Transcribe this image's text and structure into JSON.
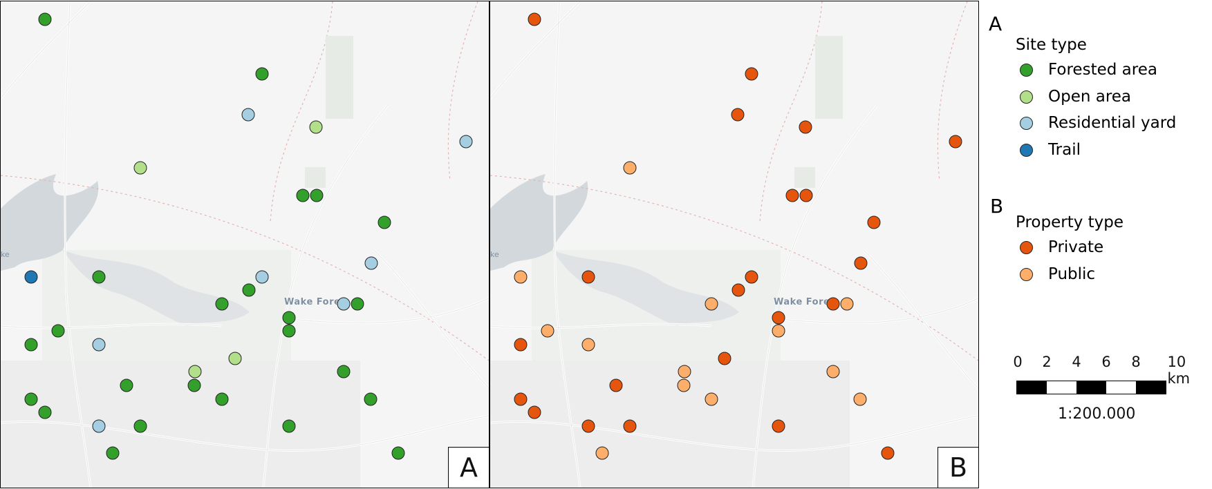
{
  "colors": {
    "forested": "#33a02c",
    "open": "#b2df8a",
    "residential": "#a6cee3",
    "trail": "#1f78b4",
    "private": "#e6550d",
    "public": "#fdae6b"
  },
  "map": {
    "place_label": "Wake Fore",
    "lake_label": "ke"
  },
  "panel_a": {
    "label": "A",
    "sites": [
      {
        "type": "forested"
      },
      {
        "type": "forested"
      },
      {
        "type": "residential"
      },
      {
        "type": "open"
      },
      {
        "type": "residential"
      },
      {
        "type": "open"
      },
      {
        "type": "forested"
      },
      {
        "type": "forested"
      },
      {
        "type": "forested"
      },
      {
        "type": "residential"
      },
      {
        "type": "trail"
      },
      {
        "type": "forested"
      },
      {
        "type": "residential"
      },
      {
        "type": "forested"
      },
      {
        "type": "forested"
      },
      {
        "type": "residential"
      },
      {
        "type": "forested"
      },
      {
        "type": "forested"
      },
      {
        "type": "forested"
      },
      {
        "type": "forested"
      },
      {
        "type": "forested"
      },
      {
        "type": "residential"
      },
      {
        "type": "open"
      },
      {
        "type": "open"
      },
      {
        "type": "forested"
      },
      {
        "type": "forested"
      },
      {
        "type": "forested"
      },
      {
        "type": "forested"
      },
      {
        "type": "forested"
      },
      {
        "type": "forested"
      },
      {
        "type": "forested"
      },
      {
        "type": "residential"
      },
      {
        "type": "forested"
      },
      {
        "type": "forested"
      },
      {
        "type": "forested"
      },
      {
        "type": "forested"
      }
    ]
  },
  "panel_b": {
    "label": "B",
    "sites": [
      {
        "type": "private"
      },
      {
        "type": "private"
      },
      {
        "type": "private"
      },
      {
        "type": "private"
      },
      {
        "type": "private"
      },
      {
        "type": "public"
      },
      {
        "type": "private"
      },
      {
        "type": "private"
      },
      {
        "type": "private"
      },
      {
        "type": "private"
      },
      {
        "type": "public"
      },
      {
        "type": "private"
      },
      {
        "type": "private"
      },
      {
        "type": "private"
      },
      {
        "type": "public"
      },
      {
        "type": "private"
      },
      {
        "type": "public"
      },
      {
        "type": "private"
      },
      {
        "type": "public"
      },
      {
        "type": "public"
      },
      {
        "type": "private"
      },
      {
        "type": "public"
      },
      {
        "type": "private"
      },
      {
        "type": "public"
      },
      {
        "type": "public"
      },
      {
        "type": "private"
      },
      {
        "type": "public"
      },
      {
        "type": "public"
      },
      {
        "type": "private"
      },
      {
        "type": "public"
      },
      {
        "type": "private"
      },
      {
        "type": "private"
      },
      {
        "type": "private"
      },
      {
        "type": "private"
      },
      {
        "type": "public"
      },
      {
        "type": "private"
      }
    ]
  },
  "legend": {
    "a": {
      "letter": "A",
      "title": "Site type",
      "items": [
        {
          "label": "Forested area",
          "type": "forested"
        },
        {
          "label": "Open area",
          "type": "open"
        },
        {
          "label": "Residential yard",
          "type": "residential"
        },
        {
          "label": "Trail",
          "type": "trail"
        }
      ]
    },
    "b": {
      "letter": "B",
      "title": "Property type",
      "items": [
        {
          "label": "Private",
          "type": "private"
        },
        {
          "label": "Public",
          "type": "public"
        }
      ]
    }
  },
  "scale": {
    "labels": [
      "0",
      "2",
      "4",
      "6",
      "8",
      "10 km"
    ],
    "ratio": "1:200.000"
  }
}
